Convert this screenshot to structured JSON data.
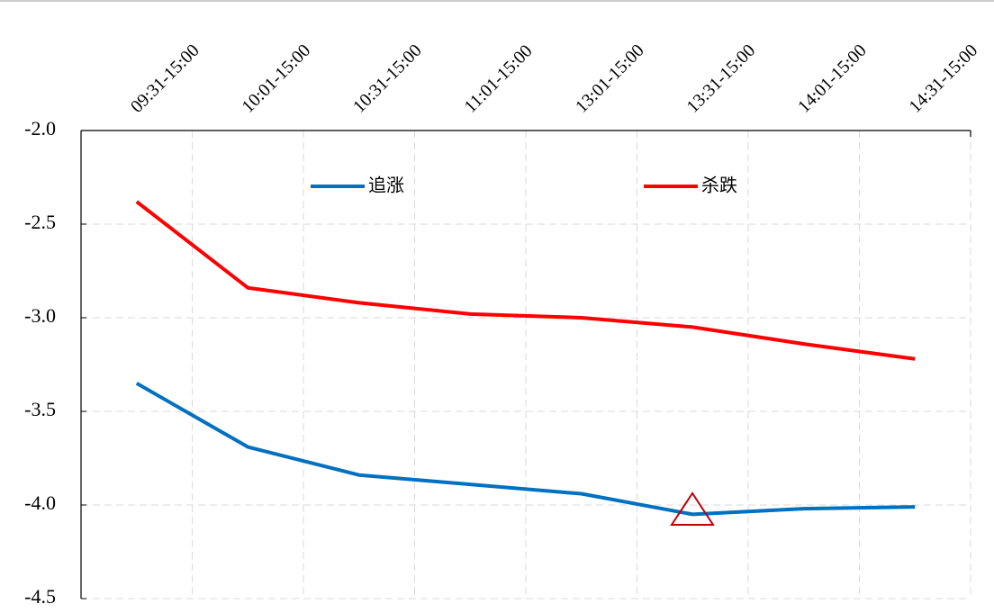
{
  "chart_data": {
    "type": "line",
    "categories": [
      "09:31-15:00",
      "10:01-15:00",
      "10:31-15:00",
      "11:01-15:00",
      "13:01-15:00",
      "13:31-15:00",
      "14:01-15:00",
      "14:31-15:00"
    ],
    "series": [
      {
        "name": "追涨",
        "color": "#0070c0",
        "values": [
          -3.35,
          -3.69,
          -3.84,
          -3.89,
          -3.94,
          -4.05,
          -4.02,
          -4.01
        ]
      },
      {
        "name": "杀跌",
        "color": "#ff0000",
        "values": [
          -2.38,
          -2.84,
          -2.92,
          -2.98,
          -3.0,
          -3.05,
          -3.14,
          -3.22
        ]
      }
    ],
    "ylim": [
      -4.5,
      -2.0
    ],
    "yticks": [
      {
        "value": -4.5,
        "label": "-4.5"
      },
      {
        "value": -4.0,
        "label": "-4.0"
      },
      {
        "value": -3.5,
        "label": "-3.5"
      },
      {
        "value": -3.0,
        "label": "-3.0"
      },
      {
        "value": -2.5,
        "label": "-2.5"
      },
      {
        "value": -2.0,
        "label": "-2.0"
      }
    ],
    "grid": true,
    "legend": "top"
  }
}
